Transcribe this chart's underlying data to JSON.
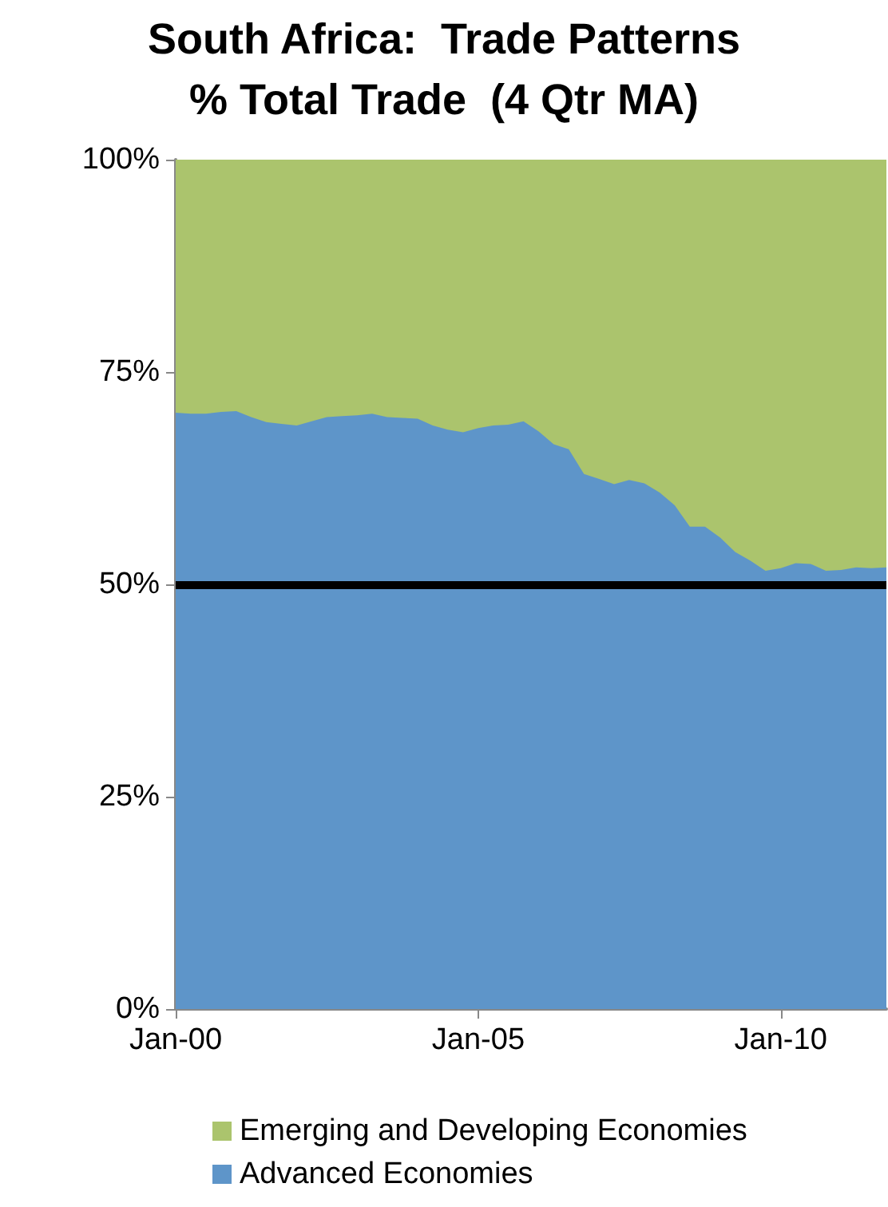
{
  "chart_data": {
    "type": "area",
    "title": "South Africa:  Trade Patterns",
    "subtitle": "% Total Trade  (4 Qtr MA)",
    "stacked": true,
    "legend": "bottom",
    "x": [
      "2000-01",
      "2000-04",
      "2000-07",
      "2000-10",
      "2001-01",
      "2001-04",
      "2001-07",
      "2001-10",
      "2002-01",
      "2002-04",
      "2002-07",
      "2002-10",
      "2003-01",
      "2003-04",
      "2003-07",
      "2003-10",
      "2004-01",
      "2004-04",
      "2004-07",
      "2004-10",
      "2005-01",
      "2005-04",
      "2005-07",
      "2005-10",
      "2006-01",
      "2006-04",
      "2006-07",
      "2006-10",
      "2007-01",
      "2007-04",
      "2007-07",
      "2007-10",
      "2008-01",
      "2008-04",
      "2008-07",
      "2008-10",
      "2009-01",
      "2009-04",
      "2009-07",
      "2009-10",
      "2010-01",
      "2010-04",
      "2010-07",
      "2010-10",
      "2011-01",
      "2011-04",
      "2011-07",
      "2011-10"
    ],
    "xlim": [
      "2000-01",
      "2011-10"
    ],
    "xticks": [
      {
        "value": "2000-01",
        "label": "Jan-00"
      },
      {
        "value": "2005-01",
        "label": "Jan-05"
      },
      {
        "value": "2010-01",
        "label": "Jan-10"
      }
    ],
    "ylim": [
      0,
      100
    ],
    "yticks": [
      {
        "value": 0,
        "label": "0%"
      },
      {
        "value": 25,
        "label": "25%"
      },
      {
        "value": 50,
        "label": "50%"
      },
      {
        "value": 75,
        "label": "75%"
      },
      {
        "value": 100,
        "label": "100%"
      }
    ],
    "series": [
      {
        "name": "Advanced Economies",
        "color": "#5e95c9",
        "values": [
          70.2,
          70.1,
          70.1,
          70.3,
          70.4,
          69.7,
          69.1,
          68.9,
          68.7,
          69.2,
          69.7,
          69.8,
          69.9,
          70.1,
          69.7,
          69.6,
          69.5,
          68.7,
          68.2,
          67.9,
          68.4,
          68.7,
          68.8,
          69.2,
          68.0,
          66.5,
          65.9,
          63.0,
          62.4,
          61.8,
          62.3,
          61.9,
          60.8,
          59.3,
          56.8,
          56.8,
          55.5,
          53.8,
          52.8,
          51.6,
          51.9,
          52.5,
          52.4,
          51.6,
          51.7,
          52.0,
          51.9,
          52.0
        ]
      },
      {
        "name": "Emerging and Developing Economies",
        "color": "#abc46d",
        "values": [
          29.8,
          29.9,
          29.9,
          29.7,
          29.6,
          30.3,
          30.9,
          31.1,
          31.3,
          30.8,
          30.3,
          30.2,
          30.1,
          29.9,
          30.3,
          30.4,
          30.5,
          31.3,
          31.8,
          32.1,
          31.6,
          31.3,
          31.2,
          30.8,
          32.0,
          33.5,
          34.1,
          37.0,
          37.6,
          38.2,
          37.7,
          38.1,
          39.2,
          40.7,
          43.2,
          43.2,
          44.5,
          46.2,
          47.2,
          48.4,
          48.1,
          47.5,
          47.6,
          48.4,
          48.3,
          48.0,
          48.1,
          48.0
        ]
      }
    ],
    "ref_lines": [
      {
        "axis": "y",
        "value": 50,
        "color": "#000000"
      }
    ]
  }
}
